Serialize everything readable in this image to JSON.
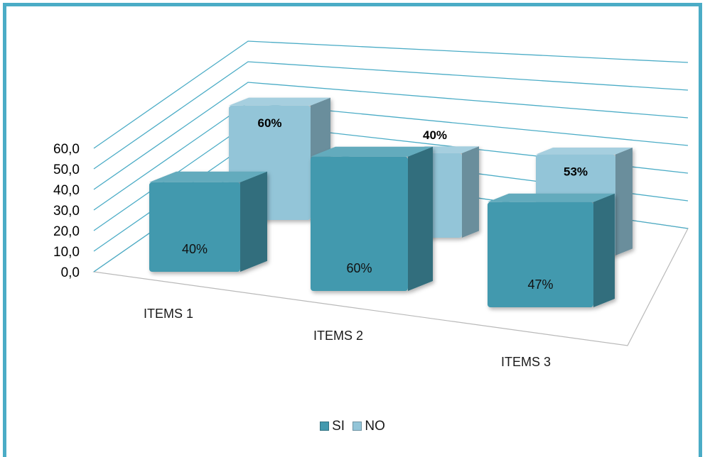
{
  "chart_data": {
    "type": "bar",
    "categories": [
      "ITEMS 1",
      "ITEMS 2",
      "ITEMS 3"
    ],
    "series": [
      {
        "name": "SI",
        "values": [
          40,
          60,
          47
        ],
        "labels": [
          "40%",
          "60%",
          "47%"
        ],
        "color": "#4299ae"
      },
      {
        "name": "NO",
        "values": [
          60,
          40,
          53
        ],
        "labels": [
          "60%",
          "40%",
          "53%"
        ],
        "color": "#93c5d8"
      }
    ],
    "y_ticks": [
      "0,0",
      "10,0",
      "20,0",
      "30,0",
      "40,0",
      "50,0",
      "60,0"
    ],
    "ylim": [
      0,
      60
    ],
    "grid": true,
    "legend_position": "bottom",
    "style": "3d-clustered-column"
  },
  "legend": {
    "items": [
      {
        "label": "SI"
      },
      {
        "label": "NO"
      }
    ]
  },
  "colors": {
    "frame": "#4bacc6",
    "grid": "#4bacc6",
    "si": "#4299ae",
    "no": "#93c5d8"
  }
}
